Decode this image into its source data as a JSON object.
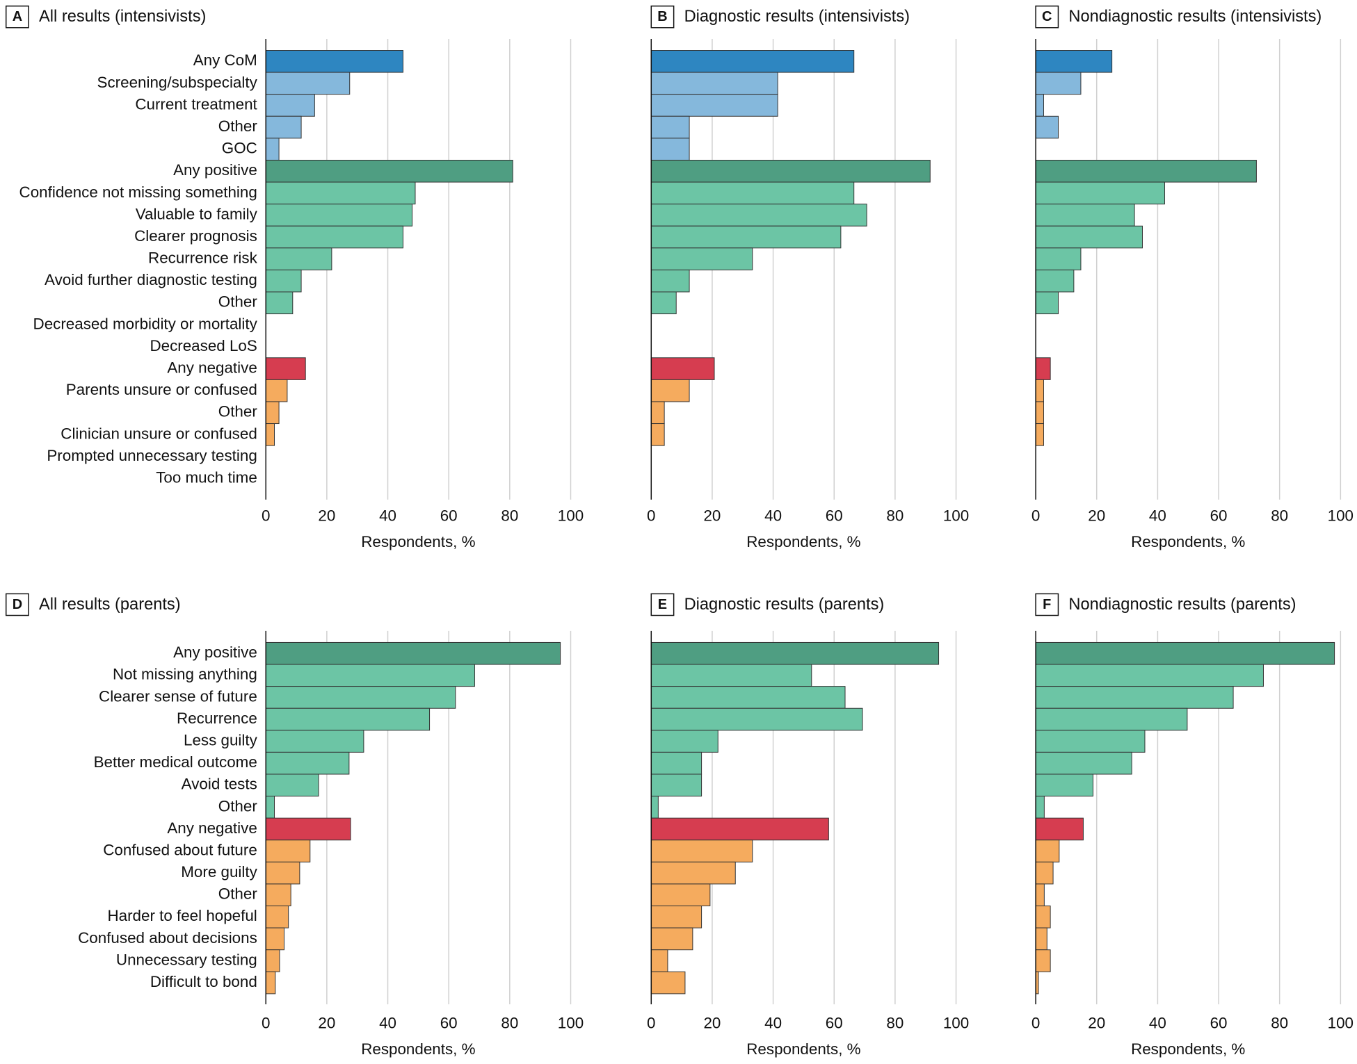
{
  "chart_data": [
    {
      "type": "hbar",
      "label": "A",
      "title": "All results (intensivists)",
      "xlabel": "Respondents, %",
      "xlim": [
        0,
        100
      ],
      "xticks": [
        0,
        20,
        40,
        60,
        80,
        100
      ],
      "grid": true,
      "categories": [
        "Any CoM",
        "Screening/subspecialty",
        "Current treatment",
        "Other",
        "GOC",
        "Any positive",
        "Confidence not missing something",
        "Valuable to family",
        "Clearer prognosis",
        "Recurrence risk",
        "Avoid further diagnostic testing",
        "Other",
        "Decreased morbidity or mortality",
        "Decreased LoS",
        "Any negative",
        "Parents unsure or confused",
        "Other",
        "Clinician unsure or confused",
        "Prompted unnecessary testing",
        "Too much time"
      ],
      "values": [
        45,
        27.5,
        16,
        11.6,
        4.3,
        81,
        49,
        48,
        45,
        21.6,
        11.6,
        8.8,
        0,
        0,
        13,
        7,
        4.3,
        2.8,
        0,
        0
      ],
      "colors": [
        "#2e86c1",
        "#85b8dc",
        "#85b8dc",
        "#85b8dc",
        "#85b8dc",
        "#4f9e82",
        "#6cc5a5",
        "#6cc5a5",
        "#6cc5a5",
        "#6cc5a5",
        "#6cc5a5",
        "#6cc5a5",
        "#6cc5a5",
        "#6cc5a5",
        "#d63d50",
        "#f5ab5e",
        "#f5ab5e",
        "#f5ab5e",
        "#f5ab5e",
        "#f5ab5e"
      ]
    },
    {
      "type": "hbar",
      "label": "B",
      "title": "Diagnostic results (intensivists)",
      "xlabel": "Respondents, %",
      "xlim": [
        0,
        100
      ],
      "xticks": [
        0,
        20,
        40,
        60,
        80,
        100
      ],
      "grid": true,
      "values": [
        66.5,
        41.5,
        41.5,
        12.5,
        12.5,
        91.5,
        66.5,
        70.7,
        62.2,
        33.2,
        12.5,
        8.2,
        0,
        0,
        20.7,
        12.5,
        4.3,
        4.3,
        0,
        0
      ],
      "colors": [
        "#2e86c1",
        "#85b8dc",
        "#85b8dc",
        "#85b8dc",
        "#85b8dc",
        "#4f9e82",
        "#6cc5a5",
        "#6cc5a5",
        "#6cc5a5",
        "#6cc5a5",
        "#6cc5a5",
        "#6cc5a5",
        "#6cc5a5",
        "#6cc5a5",
        "#d63d50",
        "#f5ab5e",
        "#f5ab5e",
        "#f5ab5e",
        "#f5ab5e",
        "#f5ab5e"
      ]
    },
    {
      "type": "hbar",
      "label": "C",
      "title": "Nondiagnostic results (intensivists)",
      "xlabel": "Respondents, %",
      "xlim": [
        0,
        100
      ],
      "xticks": [
        0,
        20,
        40,
        60,
        80,
        100
      ],
      "grid": true,
      "values": [
        25,
        14.8,
        2.6,
        7.4,
        0,
        72.4,
        42.3,
        32.4,
        35,
        14.8,
        12.5,
        7.4,
        0,
        0,
        4.8,
        2.6,
        2.6,
        2.6,
        0,
        0
      ],
      "colors": [
        "#2e86c1",
        "#85b8dc",
        "#85b8dc",
        "#85b8dc",
        "#85b8dc",
        "#4f9e82",
        "#6cc5a5",
        "#6cc5a5",
        "#6cc5a5",
        "#6cc5a5",
        "#6cc5a5",
        "#6cc5a5",
        "#6cc5a5",
        "#6cc5a5",
        "#d63d50",
        "#f5ab5e",
        "#f5ab5e",
        "#f5ab5e",
        "#f5ab5e",
        "#f5ab5e"
      ]
    },
    {
      "type": "hbar",
      "label": "D",
      "title": "All results (parents)",
      "xlabel": "Respondents, %",
      "xlim": [
        0,
        100
      ],
      "xticks": [
        0,
        20,
        40,
        60,
        80,
        100
      ],
      "grid": true,
      "categories": [
        "Any positive",
        "Not missing anything",
        "Clearer sense of future",
        "Recurrence",
        "Less guilty",
        "Better medical outcome",
        "Avoid tests",
        "Other",
        "Any negative",
        "Confused about future",
        "More guilty",
        "Other",
        "Harder to feel hopeful",
        "Confused about decisions",
        "Unnecessary testing",
        "Difficult to bond"
      ],
      "values": [
        96.6,
        68.5,
        62.2,
        53.7,
        32.1,
        27.3,
        17.3,
        2.8,
        27.8,
        14.5,
        11.1,
        8.2,
        7.4,
        6,
        4.5,
        3.1
      ],
      "colors": [
        "#4f9e82",
        "#6cc5a5",
        "#6cc5a5",
        "#6cc5a5",
        "#6cc5a5",
        "#6cc5a5",
        "#6cc5a5",
        "#6cc5a5",
        "#d63d50",
        "#f5ab5e",
        "#f5ab5e",
        "#f5ab5e",
        "#f5ab5e",
        "#f5ab5e",
        "#f5ab5e",
        "#f5ab5e"
      ]
    },
    {
      "type": "hbar",
      "label": "E",
      "title": "Diagnostic results (parents)",
      "xlabel": "Respondents, %",
      "xlim": [
        0,
        100
      ],
      "xticks": [
        0,
        20,
        40,
        60,
        80,
        100
      ],
      "grid": true,
      "values": [
        94.3,
        52.6,
        63.6,
        69.3,
        21.9,
        16.5,
        16.5,
        2.3,
        58.2,
        33.2,
        27.6,
        19.3,
        16.5,
        13.6,
        5.4,
        11.1
      ],
      "colors": [
        "#4f9e82",
        "#6cc5a5",
        "#6cc5a5",
        "#6cc5a5",
        "#6cc5a5",
        "#6cc5a5",
        "#6cc5a5",
        "#6cc5a5",
        "#d63d50",
        "#f5ab5e",
        "#f5ab5e",
        "#f5ab5e",
        "#f5ab5e",
        "#f5ab5e",
        "#f5ab5e",
        "#f5ab5e"
      ]
    },
    {
      "type": "hbar",
      "label": "F",
      "title": "Nondiagnostic results (parents)",
      "xlabel": "Respondents, %",
      "xlim": [
        0,
        100
      ],
      "xticks": [
        0,
        20,
        40,
        60,
        80,
        100
      ],
      "grid": true,
      "values": [
        98,
        74.7,
        64.8,
        49.7,
        35.8,
        31.5,
        18.8,
        2.8,
        15.6,
        7.7,
        5.7,
        2.8,
        4.8,
        3.7,
        4.8,
        0.9
      ],
      "colors": [
        "#4f9e82",
        "#6cc5a5",
        "#6cc5a5",
        "#6cc5a5",
        "#6cc5a5",
        "#6cc5a5",
        "#6cc5a5",
        "#6cc5a5",
        "#d63d50",
        "#f5ab5e",
        "#f5ab5e",
        "#f5ab5e",
        "#f5ab5e",
        "#f5ab5e",
        "#f5ab5e",
        "#f5ab5e"
      ]
    }
  ]
}
